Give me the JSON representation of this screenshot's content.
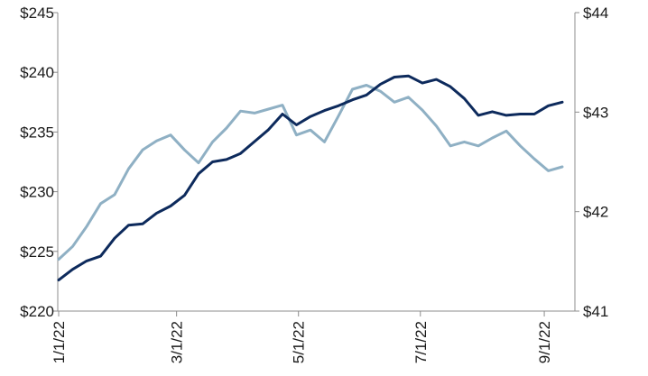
{
  "chart_data": {
    "type": "line",
    "title": "",
    "xlabel": "",
    "ylabel_left": "",
    "ylabel_right": "",
    "grid": false,
    "legend": "none",
    "x_tick_labels": [
      "1/1/22",
      "3/1/22",
      "5/1/22",
      "7/1/22",
      "9/1/22"
    ],
    "left_axis": {
      "ylim": [
        220,
        245
      ],
      "ticks": [
        220,
        225,
        230,
        235,
        240,
        245
      ],
      "tick_labels": [
        "$220",
        "$225",
        "$230",
        "$235",
        "$240",
        "$245"
      ]
    },
    "right_axis": {
      "ylim": [
        41,
        44
      ],
      "ticks": [
        41,
        42,
        43,
        44
      ],
      "tick_labels": [
        "$41",
        "$42",
        "$43",
        "$44"
      ]
    },
    "series": [
      {
        "axis": "left",
        "color": "#0d2a5c",
        "points": [
          [
            "2022-01-01",
            222.6
          ],
          [
            "2022-01-08",
            223.5
          ],
          [
            "2022-01-15",
            224.2
          ],
          [
            "2022-01-22",
            224.6
          ],
          [
            "2022-01-29",
            226.1
          ],
          [
            "2022-02-05",
            227.2
          ],
          [
            "2022-02-12",
            227.3
          ],
          [
            "2022-02-19",
            228.2
          ],
          [
            "2022-02-26",
            228.8
          ],
          [
            "2022-03-05",
            229.7
          ],
          [
            "2022-03-12",
            231.5
          ],
          [
            "2022-03-19",
            232.5
          ],
          [
            "2022-03-26",
            232.7
          ],
          [
            "2022-04-02",
            233.2
          ],
          [
            "2022-04-09",
            234.2
          ],
          [
            "2022-04-16",
            235.2
          ],
          [
            "2022-04-23",
            236.5
          ],
          [
            "2022-04-30",
            235.6
          ],
          [
            "2022-05-07",
            236.3
          ],
          [
            "2022-05-14",
            236.8
          ],
          [
            "2022-05-21",
            237.2
          ],
          [
            "2022-05-28",
            237.7
          ],
          [
            "2022-06-04",
            238.1
          ],
          [
            "2022-06-11",
            239.0
          ],
          [
            "2022-06-18",
            239.6
          ],
          [
            "2022-06-25",
            239.7
          ],
          [
            "2022-07-02",
            239.1
          ],
          [
            "2022-07-09",
            239.4
          ],
          [
            "2022-07-16",
            238.8
          ],
          [
            "2022-07-23",
            237.8
          ],
          [
            "2022-07-30",
            236.4
          ],
          [
            "2022-08-06",
            236.7
          ],
          [
            "2022-08-13",
            236.4
          ],
          [
            "2022-08-20",
            236.5
          ],
          [
            "2022-08-27",
            236.5
          ],
          [
            "2022-09-03",
            237.2
          ],
          [
            "2022-09-10",
            237.5
          ]
        ]
      },
      {
        "axis": "right",
        "color": "#8fb0c4",
        "points": [
          [
            "2022-01-01",
            41.52
          ],
          [
            "2022-01-08",
            41.65
          ],
          [
            "2022-01-15",
            41.85
          ],
          [
            "2022-01-22",
            42.08
          ],
          [
            "2022-01-29",
            42.17
          ],
          [
            "2022-02-05",
            42.43
          ],
          [
            "2022-02-12",
            42.62
          ],
          [
            "2022-02-19",
            42.71
          ],
          [
            "2022-02-26",
            42.77
          ],
          [
            "2022-03-05",
            42.62
          ],
          [
            "2022-03-12",
            42.49
          ],
          [
            "2022-03-19",
            42.7
          ],
          [
            "2022-03-26",
            42.84
          ],
          [
            "2022-04-02",
            43.01
          ],
          [
            "2022-04-09",
            42.99
          ],
          [
            "2022-04-16",
            43.03
          ],
          [
            "2022-04-23",
            43.07
          ],
          [
            "2022-04-30",
            42.77
          ],
          [
            "2022-05-07",
            42.82
          ],
          [
            "2022-05-14",
            42.7
          ],
          [
            "2022-05-21",
            42.96
          ],
          [
            "2022-05-28",
            43.23
          ],
          [
            "2022-06-04",
            43.27
          ],
          [
            "2022-06-11",
            43.21
          ],
          [
            "2022-06-18",
            43.1
          ],
          [
            "2022-06-25",
            43.15
          ],
          [
            "2022-07-02",
            43.02
          ],
          [
            "2022-07-09",
            42.86
          ],
          [
            "2022-07-16",
            42.66
          ],
          [
            "2022-07-23",
            42.7
          ],
          [
            "2022-07-30",
            42.66
          ],
          [
            "2022-08-06",
            42.74
          ],
          [
            "2022-08-13",
            42.81
          ],
          [
            "2022-08-20",
            42.66
          ],
          [
            "2022-08-27",
            42.53
          ],
          [
            "2022-09-03",
            42.41
          ],
          [
            "2022-09-10",
            42.45
          ]
        ]
      }
    ]
  }
}
